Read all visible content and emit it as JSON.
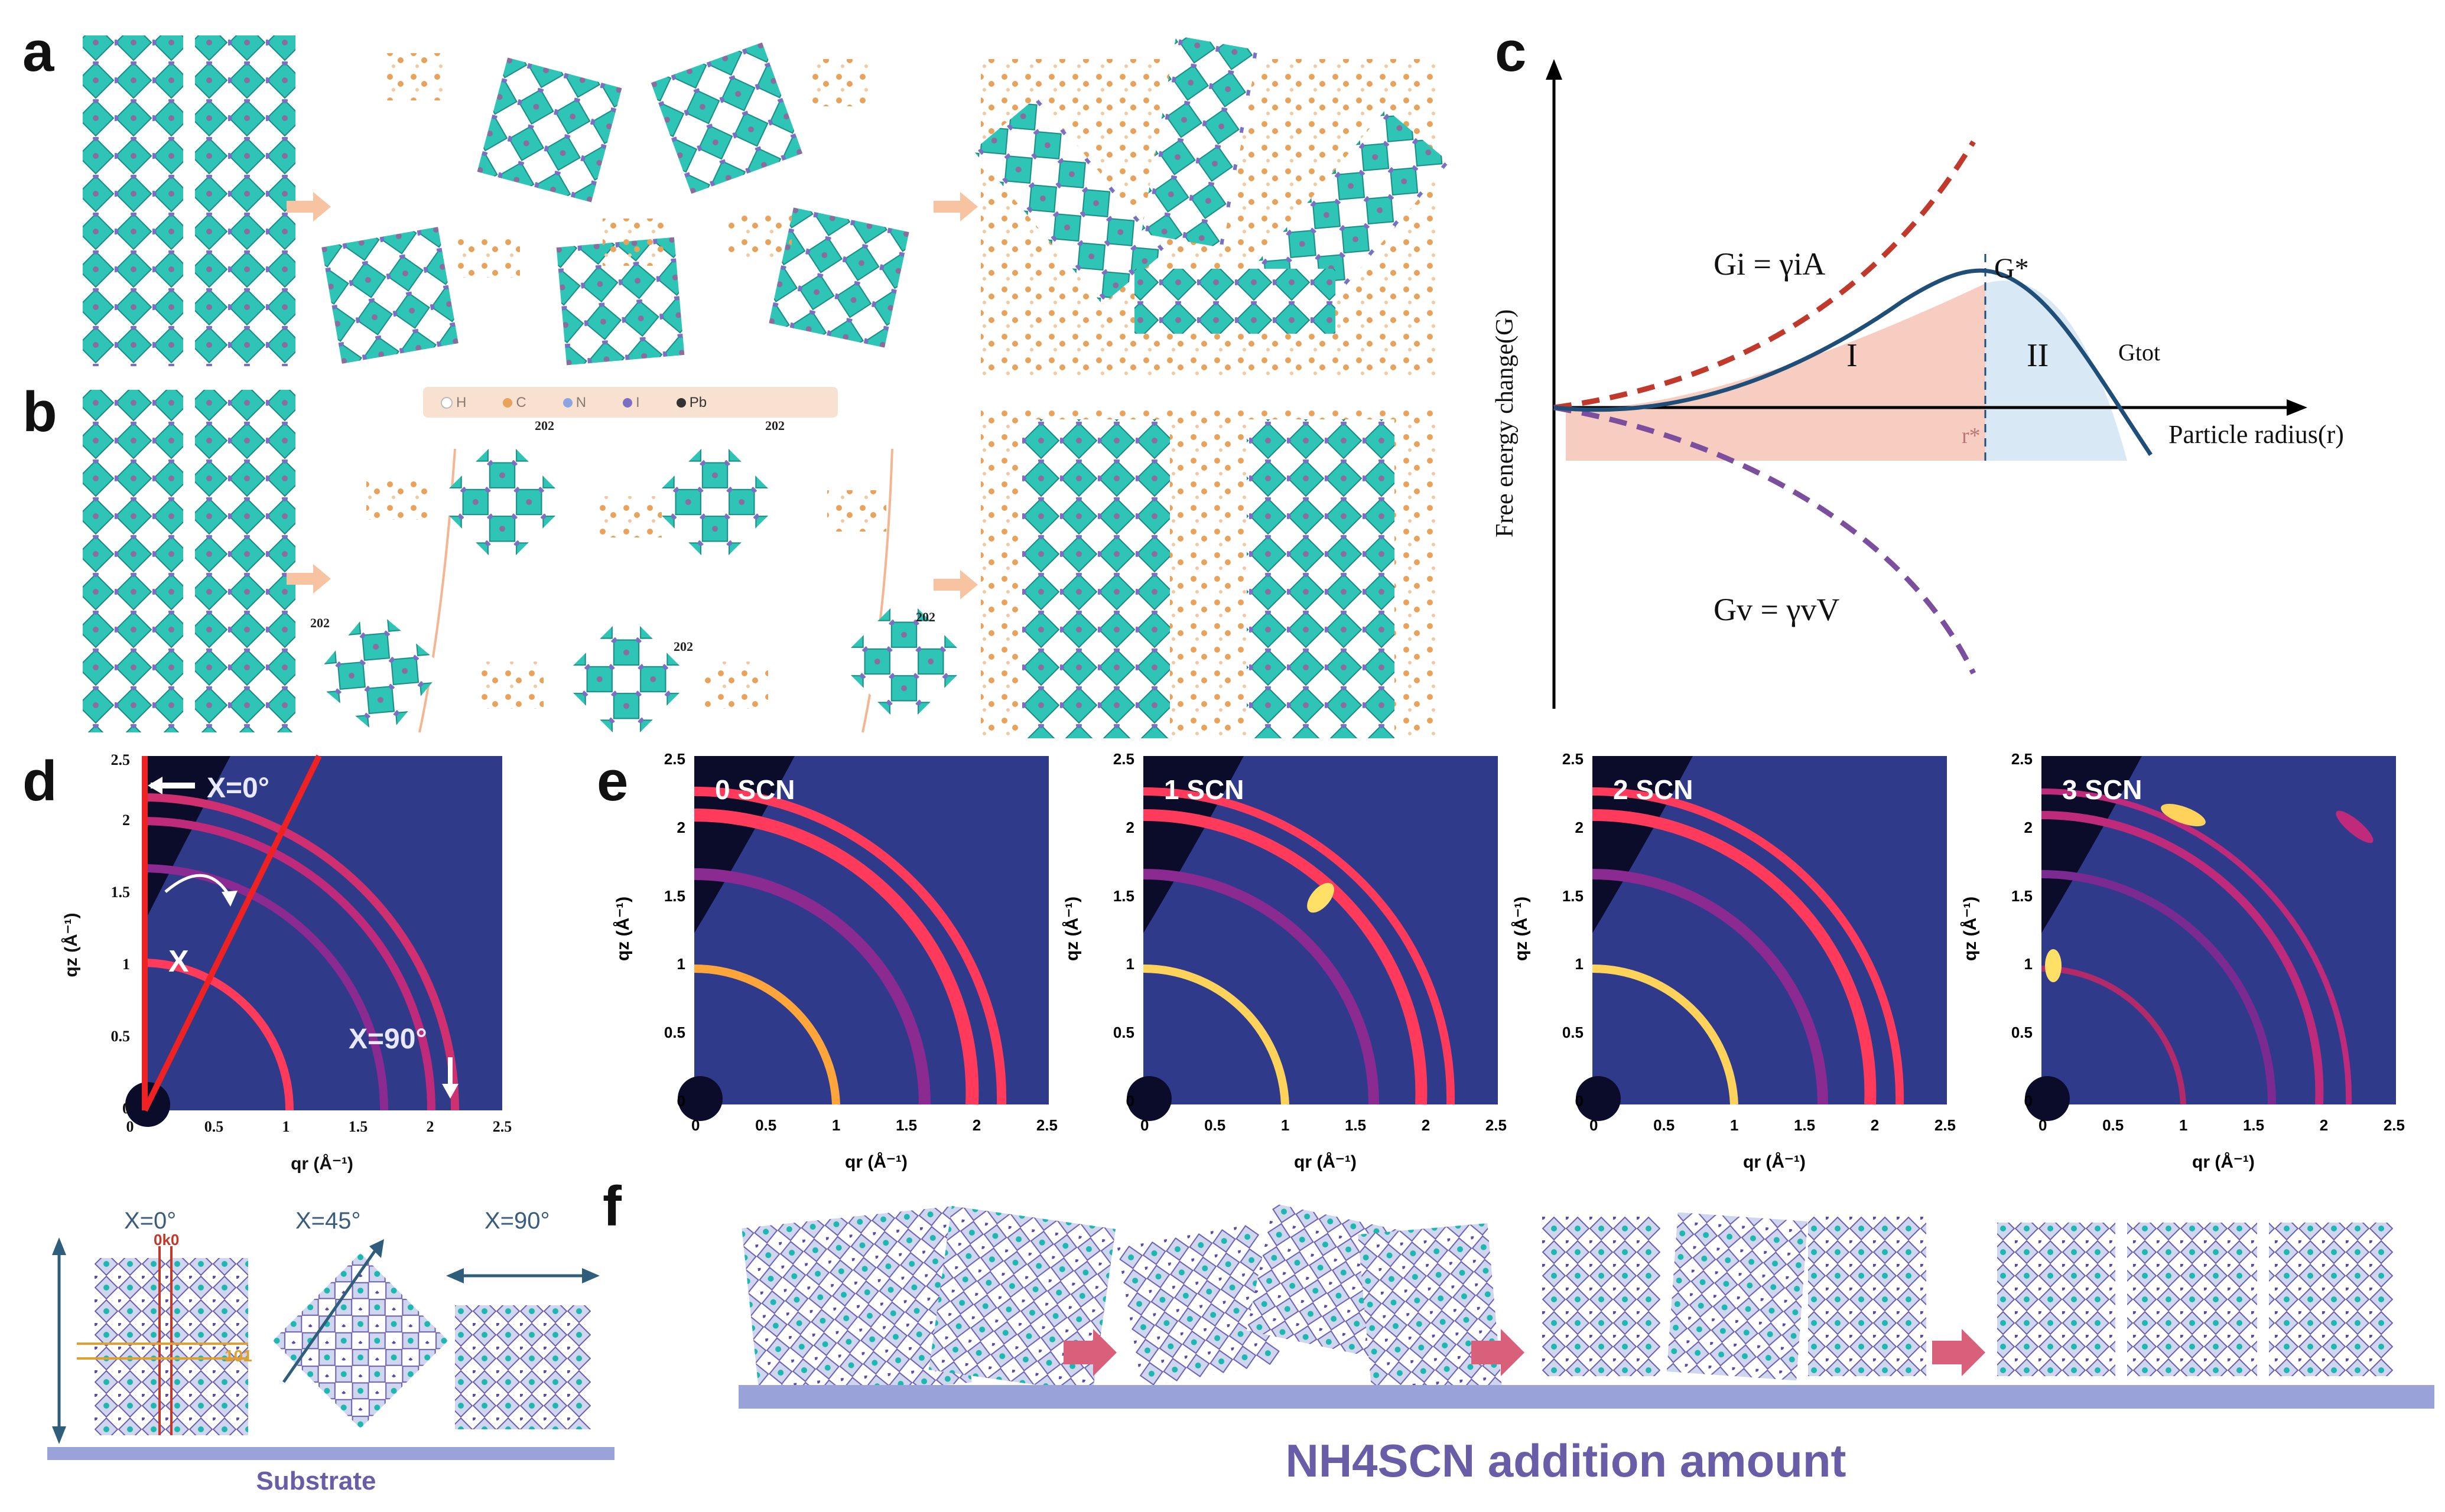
{
  "figure": {
    "panel_labels": [
      "a",
      "b",
      "c",
      "d",
      "e",
      "f"
    ]
  },
  "panel_b": {
    "legend": [
      "H",
      "C",
      "N",
      "I",
      "Pb"
    ],
    "plane_label": "202"
  },
  "panel_c": {
    "y_axis_label": "Free energy change(G)",
    "x_axis_label": "Particle radius(r)",
    "eq_surface": "Gi = γiA",
    "eq_volume": "Gv = γvV",
    "g_star": "G*",
    "r_star": "r*",
    "region_1": "I",
    "region_2": "II",
    "g_tot": "Gtot"
  },
  "panel_d": {
    "x_label": "qr (Å⁻¹)",
    "y_label": "qz (Å⁻¹)",
    "chi_0": "X=0°",
    "chi_90": "X=90°",
    "chi": "X",
    "schematic_labels": [
      "X=0°",
      "X=45°",
      "X=90°"
    ],
    "plane_0k0": "0k0",
    "plane_101": "101",
    "substrate": "Substrate"
  },
  "panel_e": {
    "samples": [
      "0 SCN",
      "1 SCN",
      "2 SCN",
      "3 SCN"
    ],
    "x_label": "qr (Å⁻¹)",
    "y_label": "qz (Å⁻¹)"
  },
  "panel_f": {
    "caption": "NH4SCN addition amount"
  },
  "chart_data": [
    {
      "type": "line",
      "panel": "c",
      "title": "",
      "xlabel": "Particle radius(r)",
      "ylabel": "Free energy change(G)",
      "series": [
        {
          "name": "Gi = γiA",
          "style": "dashed",
          "color": "#c0392b"
        },
        {
          "name": "Gv = γvV",
          "style": "dashed",
          "color": "#7b4f9d"
        },
        {
          "name": "Gtot",
          "style": "solid",
          "color": "#1f4e79"
        }
      ],
      "annotations": [
        "G*",
        "r*",
        "I",
        "II"
      ]
    },
    {
      "type": "heatmap",
      "panel": "d",
      "xlabel": "qr (Å⁻¹)",
      "ylabel": "qz (Å⁻¹)",
      "xlim": [
        0,
        2.5
      ],
      "ylim": [
        0,
        2.5
      ],
      "x_ticks": [
        "0",
        "0.5",
        "1",
        "1.5",
        "2",
        "2.5"
      ],
      "y_ticks": [
        "0",
        "0.5",
        "1",
        "1.5",
        "2",
        "2.5"
      ]
    },
    {
      "type": "heatmap",
      "panel": "e",
      "xlabel": "qr (Å⁻¹)",
      "ylabel": "qz (Å⁻¹)",
      "xlim": [
        0,
        2.5
      ],
      "ylim": [
        0,
        2.5
      ],
      "x_ticks": [
        "0",
        "0.5",
        "1",
        "1.5",
        "2",
        "2.5"
      ],
      "y_ticks": [
        "0",
        "0.5",
        "1",
        "1.5",
        "2",
        "2.5"
      ],
      "series": [
        {
          "name": "0 SCN"
        },
        {
          "name": "1 SCN"
        },
        {
          "name": "2 SCN"
        },
        {
          "name": "3 SCN"
        }
      ]
    }
  ]
}
